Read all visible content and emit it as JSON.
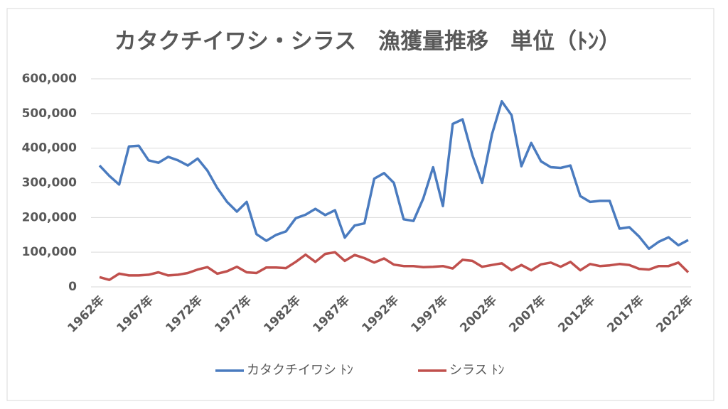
{
  "chart_data": {
    "type": "line",
    "title": "カタクチイワシ・シラス　漁獲量推移　単位（ﾄﾝ）",
    "categories": [
      "1962年",
      null,
      null,
      null,
      null,
      "1967年",
      null,
      null,
      null,
      null,
      "1972年",
      null,
      null,
      null,
      null,
      "1977年",
      null,
      null,
      null,
      null,
      "1982年",
      null,
      null,
      null,
      null,
      "1987年",
      null,
      null,
      null,
      null,
      "1992年",
      null,
      null,
      null,
      null,
      "1997年",
      null,
      null,
      null,
      null,
      "2002年",
      null,
      null,
      null,
      null,
      "2007年",
      null,
      null,
      null,
      null,
      "2012年",
      null,
      null,
      null,
      null,
      "2017年",
      null,
      null,
      null,
      null,
      "2022年"
    ],
    "series": [
      {
        "name": "カタクチイワシ ﾄﾝ",
        "color": "#4a7bbf",
        "values": [
          350000,
          320000,
          295000,
          405000,
          407000,
          365000,
          358000,
          375000,
          365000,
          350000,
          370000,
          335000,
          285000,
          245000,
          217000,
          245000,
          152000,
          133000,
          150000,
          160000,
          198000,
          208000,
          225000,
          207000,
          221000,
          142000,
          177000,
          183000,
          312000,
          328000,
          300000,
          195000,
          190000,
          255000,
          345000,
          233000,
          470000,
          483000,
          380000,
          300000,
          440000,
          535000,
          495000,
          348000,
          415000,
          362000,
          345000,
          343000,
          350000,
          262000,
          245000,
          248000,
          248000,
          168000,
          172000,
          145000,
          110000,
          130000,
          143000,
          120000,
          135000
        ]
      },
      {
        "name": "シラス ﾄﾝ",
        "color": "#c0504d",
        "values": [
          28000,
          20000,
          38000,
          33000,
          33000,
          35000,
          42000,
          33000,
          35000,
          40000,
          50000,
          57000,
          38000,
          45000,
          58000,
          42000,
          40000,
          56000,
          56000,
          54000,
          72000,
          93000,
          72000,
          95000,
          100000,
          75000,
          92000,
          83000,
          70000,
          82000,
          64000,
          60000,
          60000,
          57000,
          58000,
          60000,
          53000,
          78000,
          75000,
          58000,
          63000,
          68000,
          48000,
          63000,
          48000,
          65000,
          70000,
          58000,
          72000,
          48000,
          66000,
          60000,
          62000,
          66000,
          63000,
          52000,
          50000,
          60000,
          60000,
          70000,
          42000
        ]
      }
    ],
    "ylim": [
      0,
      600000
    ],
    "yticks": [
      0,
      {
        "value": 100000,
        "label": "100,000"
      },
      {
        "value": 200000,
        "label": "200,000"
      },
      {
        "value": 300000,
        "label": "300,000"
      },
      {
        "value": 400000,
        "label": "400,000"
      },
      {
        "value": 500000,
        "label": "500,000"
      },
      {
        "value": 600000,
        "label": "600,000"
      }
    ],
    "grid": true,
    "legend": "bottom"
  }
}
